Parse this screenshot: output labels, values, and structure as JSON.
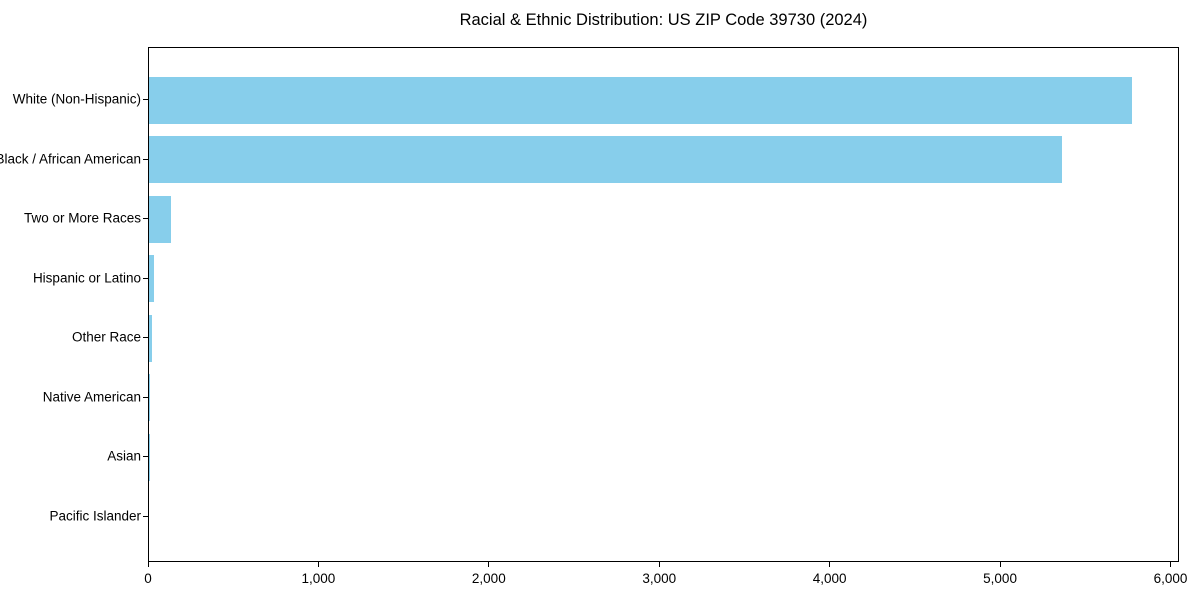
{
  "chart_data": {
    "type": "bar",
    "orientation": "horizontal",
    "title": "Racial & Ethnic Distribution: US ZIP Code 39730 (2024)",
    "categories": [
      "White (Non-Hispanic)",
      "Black / African American",
      "Two or More Races",
      "Hispanic or Latino",
      "Other Race",
      "Native American",
      "Asian",
      "Pacific Islander"
    ],
    "values": [
      5770,
      5360,
      130,
      30,
      20,
      7,
      2,
      0
    ],
    "xlabel": "",
    "ylabel": "",
    "xlim": [
      0,
      6050
    ],
    "x_ticks": [
      0,
      1000,
      2000,
      3000,
      4000,
      5000,
      6000
    ],
    "x_tick_labels": [
      "0",
      "1,000",
      "2,000",
      "3,000",
      "4,000",
      "5,000",
      "6,000"
    ],
    "bar_color": "#87CEEB",
    "background_color": "#ffffff",
    "text_color": "#000000",
    "axis_color": "#000000",
    "grid": false,
    "legend": null
  }
}
